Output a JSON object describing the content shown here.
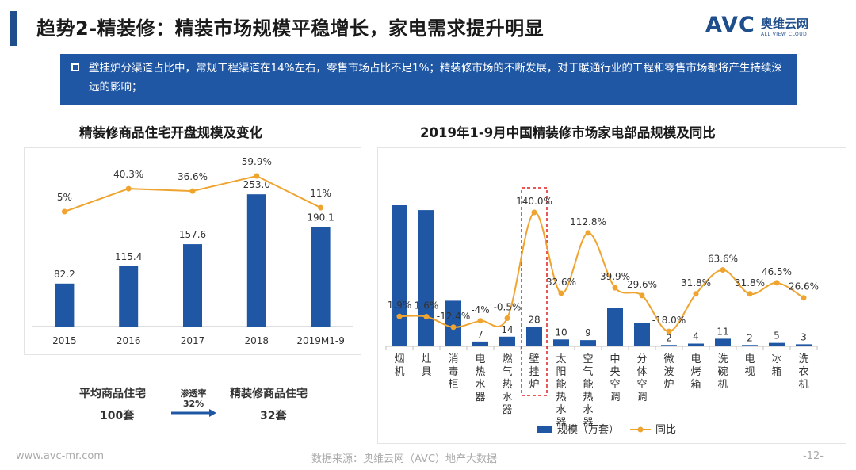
{
  "header": {
    "title": "趋势2-精装修：精装市场规模平稳增长，家电需求提升明显",
    "logo_text": "AVC",
    "logo_cn": "奥维云网",
    "logo_en": "ALL VIEW CLOUD"
  },
  "notice": {
    "text": "壁挂炉分渠道占比中，常规工程渠道在14%左右，零售市场占比不足1%；精装修市场的不断发展，对于暖通行业的工程和零售市场都将产生持续深远的影响；"
  },
  "left_title": "精装修商品住宅开盘规模及变化",
  "right_title": "2019年1-9月中国精装修市场家电部品规模及同比",
  "summary": {
    "left_label": "平均商品住宅",
    "left_value": "100套",
    "arrow_top": "渗透率",
    "arrow_bottom": "32%",
    "right_label": "精装修商品住宅",
    "right_value": "32套"
  },
  "chart_data": [
    {
      "type": "bar",
      "categories": [
        "2015",
        "2016",
        "2017",
        "2018",
        "2019M1-9"
      ],
      "bar_labels": [
        "82.2",
        "115.4",
        "157.6",
        "253.0",
        "190.1"
      ],
      "series": [
        {
          "values": [
            82.2,
            115.4,
            157.6,
            253.0,
            190.1
          ],
          "kind": "bar",
          "color": "#1f57a4"
        },
        {
          "values": [
            5,
            40.3,
            36.6,
            59.9,
            11
          ],
          "kind": "line",
          "color": "#f0a430",
          "labels": [
            "5%",
            "40.3%",
            "36.6%",
            "59.9%",
            "11%"
          ]
        }
      ]
    },
    {
      "type": "bar",
      "categories": [
        "烟机",
        "灶具",
        "消毒柜",
        "电热水器",
        "燃气热水器",
        "壁挂炉",
        "太阳能热水器",
        "空气能热水器",
        "中央空调",
        "分体空调",
        "微波炉",
        "电烤箱",
        "洗碗机",
        "电视",
        "冰箱",
        "洗衣机"
      ],
      "bar_labels": [
        "",
        "",
        "",
        "7",
        "14",
        "28",
        "10",
        "9",
        "",
        "",
        "2",
        "4",
        "11",
        "2",
        "5",
        "3"
      ],
      "series": [
        {
          "name": "规模（万套）",
          "kind": "bar",
          "color": "#1f57a4",
          "values": [
            204,
            197,
            66,
            7,
            14,
            28,
            10,
            9,
            56,
            34,
            2,
            4,
            11,
            2,
            5,
            3
          ]
        },
        {
          "name": "同比",
          "kind": "line",
          "color": "#f0a430",
          "values": [
            1.9,
            1.6,
            -12.4,
            -4,
            -0.5,
            140.0,
            32.6,
            112.8,
            39.9,
            29.6,
            -18.0,
            31.8,
            63.6,
            31.8,
            46.5,
            26.6
          ],
          "labels": [
            "1.9%",
            "1.6%",
            "-12.4%",
            "-4%",
            "-0.5%",
            "140.0%",
            "32.6%",
            "112.8%",
            "39.9%",
            "29.6%",
            "-18.0%",
            "31.8%",
            "63.6%",
            "31.8%",
            "46.5%",
            "26.6%"
          ]
        }
      ],
      "highlight_category": "壁挂炉"
    }
  ],
  "footer": {
    "url": "www.avc-mr.com",
    "source": "数据来源：奥维云网（AVC）地产大数据",
    "page": "-12-"
  }
}
